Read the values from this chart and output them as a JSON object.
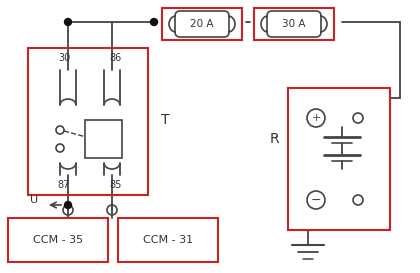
{
  "bg_color": "#ffffff",
  "line_color": "#444444",
  "red_color": "#cc2222",
  "text_color": "#333333",
  "dot_color": "#111111",
  "fuse20_label": "20 A",
  "fuse30_label": "30 A",
  "relay_label": "T",
  "r_label": "R",
  "u_label": "U",
  "ccm35_label": "CCM - 35",
  "ccm31_label": "CCM - 31",
  "pin30": "30",
  "pin86": "86",
  "pin87": "87",
  "pin85": "85"
}
